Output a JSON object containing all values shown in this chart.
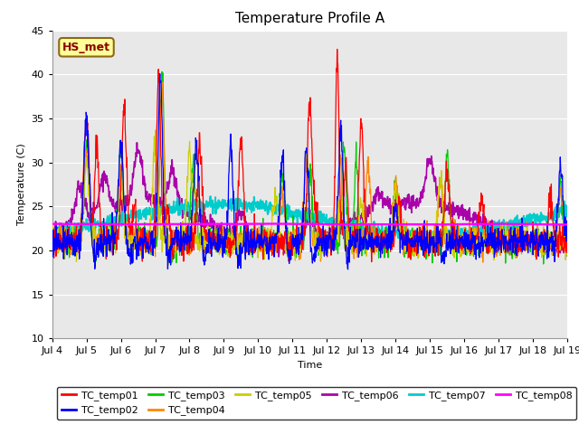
{
  "title": "Temperature Profile A",
  "xlabel": "Time",
  "ylabel": "Temperature (C)",
  "ylim": [
    10,
    45
  ],
  "xlim": [
    0,
    15
  ],
  "fig_bg_color": "#ffffff",
  "plot_bg_color": "#e8e8e8",
  "annotation_text": "HS_met",
  "annotation_bg": "#ffff99",
  "annotation_border": "#8B6914",
  "series_colors": {
    "TC_temp01": "#ff0000",
    "TC_temp02": "#0000ff",
    "TC_temp03": "#00cc00",
    "TC_temp04": "#ff8800",
    "TC_temp05": "#cccc00",
    "TC_temp06": "#aa00aa",
    "TC_temp07": "#00cccc",
    "TC_temp08": "#ff00ff"
  },
  "xtick_labels": [
    "Jul 4",
    "Jul 5",
    "Jul 6",
    "Jul 7",
    "Jul 8",
    "Jul 9",
    "Jul 10",
    "Jul 11",
    "Jul 12",
    "Jul 13",
    "Jul 14",
    "Jul 15",
    "Jul 16",
    "Jul 17",
    "Jul 18",
    "Jul 19"
  ],
  "ytick_values": [
    10,
    15,
    20,
    25,
    30,
    35,
    40,
    45
  ],
  "title_fontsize": 11,
  "legend_fontsize": 8,
  "axis_fontsize": 8,
  "tick_fontsize": 8
}
